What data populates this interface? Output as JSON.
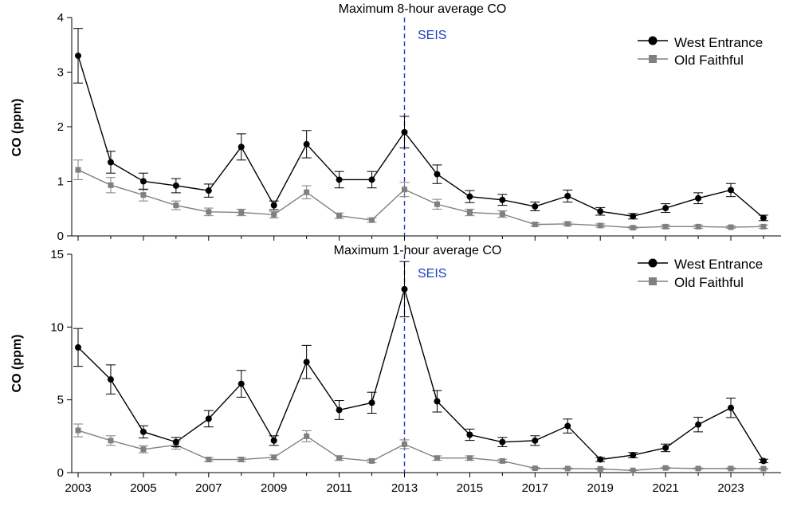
{
  "chart_data": [
    {
      "type": "line",
      "title": "Maximum 8-hour average CO",
      "ylabel": "CO (ppm)",
      "xlabel": "",
      "ylim": [
        0,
        4
      ],
      "yticks": [
        0,
        1,
        2,
        3,
        4
      ],
      "x": [
        2003,
        2004,
        2005,
        2006,
        2007,
        2008,
        2009,
        2010,
        2011,
        2012,
        2013,
        2014,
        2015,
        2016,
        2017,
        2018,
        2019,
        2020,
        2021,
        2022,
        2023,
        2024
      ],
      "series": [
        {
          "name": "West Entrance",
          "color": "#000000",
          "marker": "circle",
          "values": [
            3.3,
            1.35,
            1.0,
            0.92,
            0.83,
            1.63,
            0.56,
            1.68,
            1.03,
            1.03,
            1.9,
            1.13,
            0.72,
            0.66,
            0.54,
            0.73,
            0.45,
            0.36,
            0.51,
            0.69,
            0.84,
            0.33
          ],
          "errors": [
            0.5,
            0.2,
            0.15,
            0.13,
            0.12,
            0.24,
            0.08,
            0.25,
            0.15,
            0.15,
            0.29,
            0.17,
            0.11,
            0.1,
            0.08,
            0.11,
            0.07,
            0.05,
            0.08,
            0.1,
            0.12,
            0.05
          ]
        },
        {
          "name": "Old Faithful",
          "color": "#808080",
          "marker": "square",
          "values": [
            1.21,
            0.93,
            0.75,
            0.56,
            0.44,
            0.43,
            0.39,
            0.8,
            0.37,
            0.29,
            0.85,
            0.58,
            0.43,
            0.4,
            0.21,
            0.22,
            0.19,
            0.15,
            0.17,
            0.17,
            0.16,
            0.17
          ],
          "errors": [
            0.18,
            0.14,
            0.11,
            0.08,
            0.07,
            0.06,
            0.06,
            0.12,
            0.05,
            0.04,
            0.13,
            0.09,
            0.06,
            0.06,
            0.03,
            0.03,
            0.03,
            0.02,
            0.03,
            0.03,
            0.02,
            0.03
          ]
        }
      ],
      "annotation": {
        "label": "SEIS",
        "x": 2013,
        "color": "#1f3fbf"
      },
      "legend": "top-right",
      "grid": false
    },
    {
      "type": "line",
      "title": "Maximum 1-hour average CO",
      "ylabel": "CO (ppm)",
      "xlabel": "",
      "ylim": [
        0,
        15
      ],
      "yticks": [
        0,
        5,
        10,
        15
      ],
      "x": [
        2003,
        2004,
        2005,
        2006,
        2007,
        2008,
        2009,
        2010,
        2011,
        2012,
        2013,
        2014,
        2015,
        2016,
        2017,
        2018,
        2019,
        2020,
        2021,
        2022,
        2023,
        2024
      ],
      "xtick_labels": [
        2003,
        2005,
        2007,
        2009,
        2011,
        2013,
        2015,
        2017,
        2019,
        2021,
        2023
      ],
      "series": [
        {
          "name": "West Entrance",
          "color": "#000000",
          "marker": "circle",
          "values": [
            8.6,
            6.4,
            2.8,
            2.1,
            3.7,
            6.1,
            2.2,
            7.6,
            4.3,
            4.8,
            12.6,
            4.9,
            2.6,
            2.1,
            2.2,
            3.2,
            0.9,
            1.2,
            1.7,
            3.3,
            4.45,
            0.8
          ],
          "errors": [
            1.3,
            1.0,
            0.42,
            0.32,
            0.56,
            0.92,
            0.33,
            1.14,
            0.65,
            0.72,
            1.9,
            0.74,
            0.39,
            0.32,
            0.33,
            0.48,
            0.14,
            0.18,
            0.26,
            0.5,
            0.67,
            0.12
          ]
        },
        {
          "name": "Old Faithful",
          "color": "#808080",
          "marker": "square",
          "values": [
            2.9,
            2.2,
            1.6,
            1.9,
            0.9,
            0.9,
            1.05,
            2.5,
            1.0,
            0.8,
            1.95,
            1.0,
            1.0,
            0.8,
            0.3,
            0.28,
            0.25,
            0.15,
            0.32,
            0.28,
            0.28,
            0.27
          ],
          "errors": [
            0.44,
            0.33,
            0.24,
            0.29,
            0.14,
            0.14,
            0.16,
            0.38,
            0.15,
            0.12,
            0.3,
            0.15,
            0.15,
            0.12,
            0.05,
            0.04,
            0.04,
            0.02,
            0.05,
            0.04,
            0.04,
            0.04
          ]
        }
      ],
      "annotation": {
        "label": "SEIS",
        "x": 2013,
        "color": "#1f3fbf"
      },
      "legend": "top-right",
      "grid": false
    }
  ]
}
